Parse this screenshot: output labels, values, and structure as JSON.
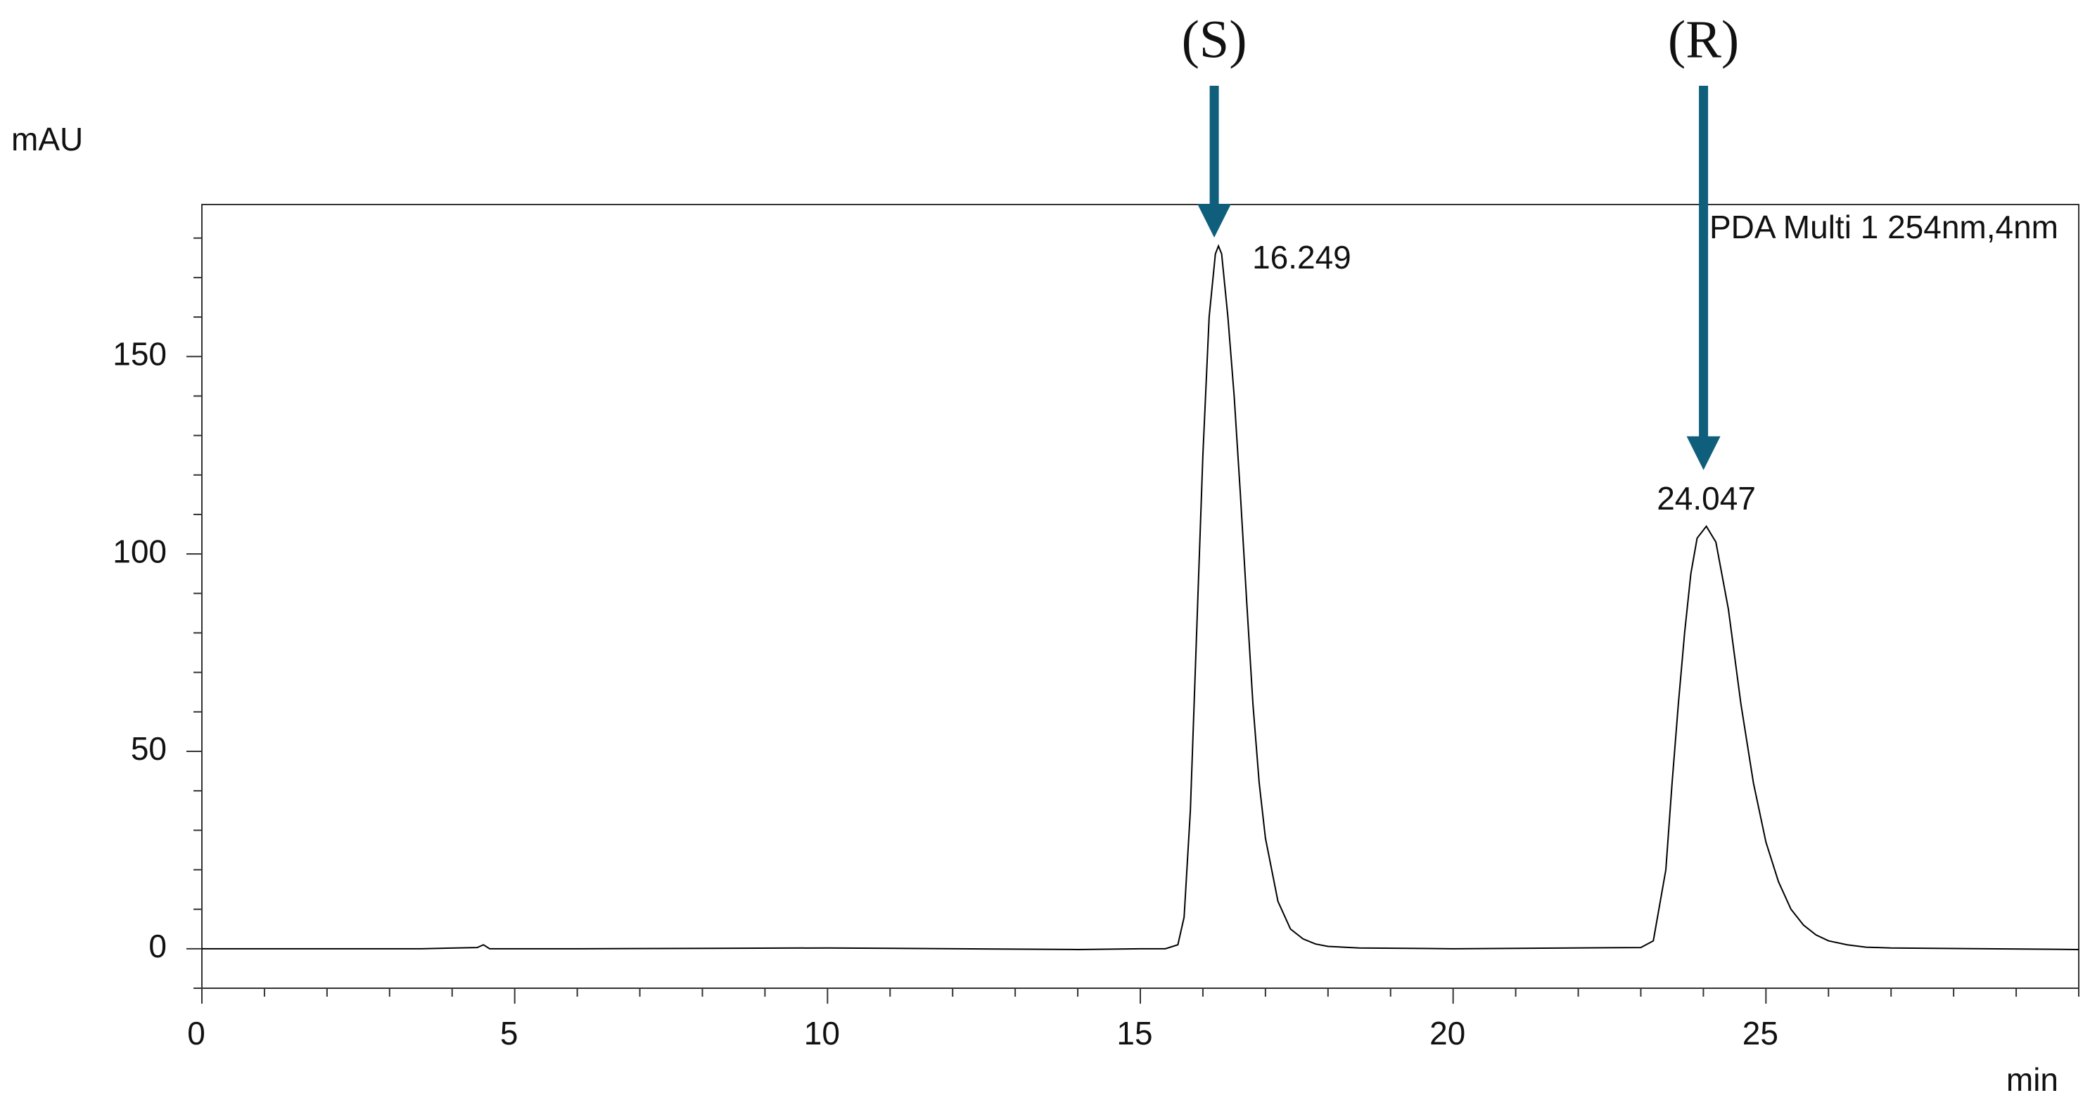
{
  "chart_data": {
    "type": "line",
    "y_label": "mAU",
    "x_label": "min",
    "annotation": "PDA Multi 1 254nm,4nm",
    "x": [
      0,
      3.5,
      4.4,
      4.5,
      4.6,
      6,
      10,
      14,
      15,
      15.4,
      15.6,
      15.7,
      15.8,
      15.9,
      16.0,
      16.1,
      16.2,
      16.249,
      16.3,
      16.4,
      16.5,
      16.6,
      16.7,
      16.8,
      16.9,
      17.0,
      17.2,
      17.4,
      17.6,
      17.8,
      18.0,
      18.5,
      20,
      23.0,
      23.2,
      23.4,
      23.5,
      23.6,
      23.7,
      23.8,
      23.9,
      24.047,
      24.2,
      24.4,
      24.6,
      24.8,
      25.0,
      25.2,
      25.4,
      25.6,
      25.8,
      26.0,
      26.3,
      26.6,
      27.0,
      30
    ],
    "series": [
      {
        "color": "#000000",
        "values": [
          0,
          0,
          0.3,
          1,
          0,
          0,
          0.2,
          -0.2,
          0,
          0,
          1,
          8,
          35,
          80,
          125,
          160,
          176,
          178,
          176,
          160,
          140,
          115,
          88,
          62,
          42,
          28,
          12,
          5,
          2.5,
          1.2,
          0.6,
          0.2,
          0,
          0.3,
          2,
          20,
          42,
          62,
          80,
          95,
          104,
          107,
          103,
          86,
          62,
          42,
          27,
          17,
          10,
          6,
          3.5,
          2,
          1,
          0.4,
          0.2,
          -0.2
        ]
      }
    ],
    "xlim": [
      0,
      30
    ],
    "ylim": [
      -10,
      188.5
    ],
    "xticks": [
      0,
      5,
      10,
      15,
      20,
      25
    ],
    "yticks": [
      0,
      50,
      100,
      150
    ],
    "xminorticks": [
      1,
      2,
      3,
      4,
      6,
      7,
      8,
      9,
      11,
      12,
      13,
      14,
      16,
      17,
      18,
      19,
      21,
      22,
      23,
      24,
      26,
      27,
      28,
      29,
      30
    ],
    "yminorticks": [
      -10,
      10,
      20,
      30,
      40,
      60,
      70,
      80,
      90,
      110,
      120,
      130,
      140,
      160,
      170,
      180
    ],
    "peaks": {
      "x": [
        16.249,
        24.047
      ],
      "names": [
        "(S)",
        "(R)"
      ],
      "arrow_color": "#0f5f7c"
    }
  }
}
